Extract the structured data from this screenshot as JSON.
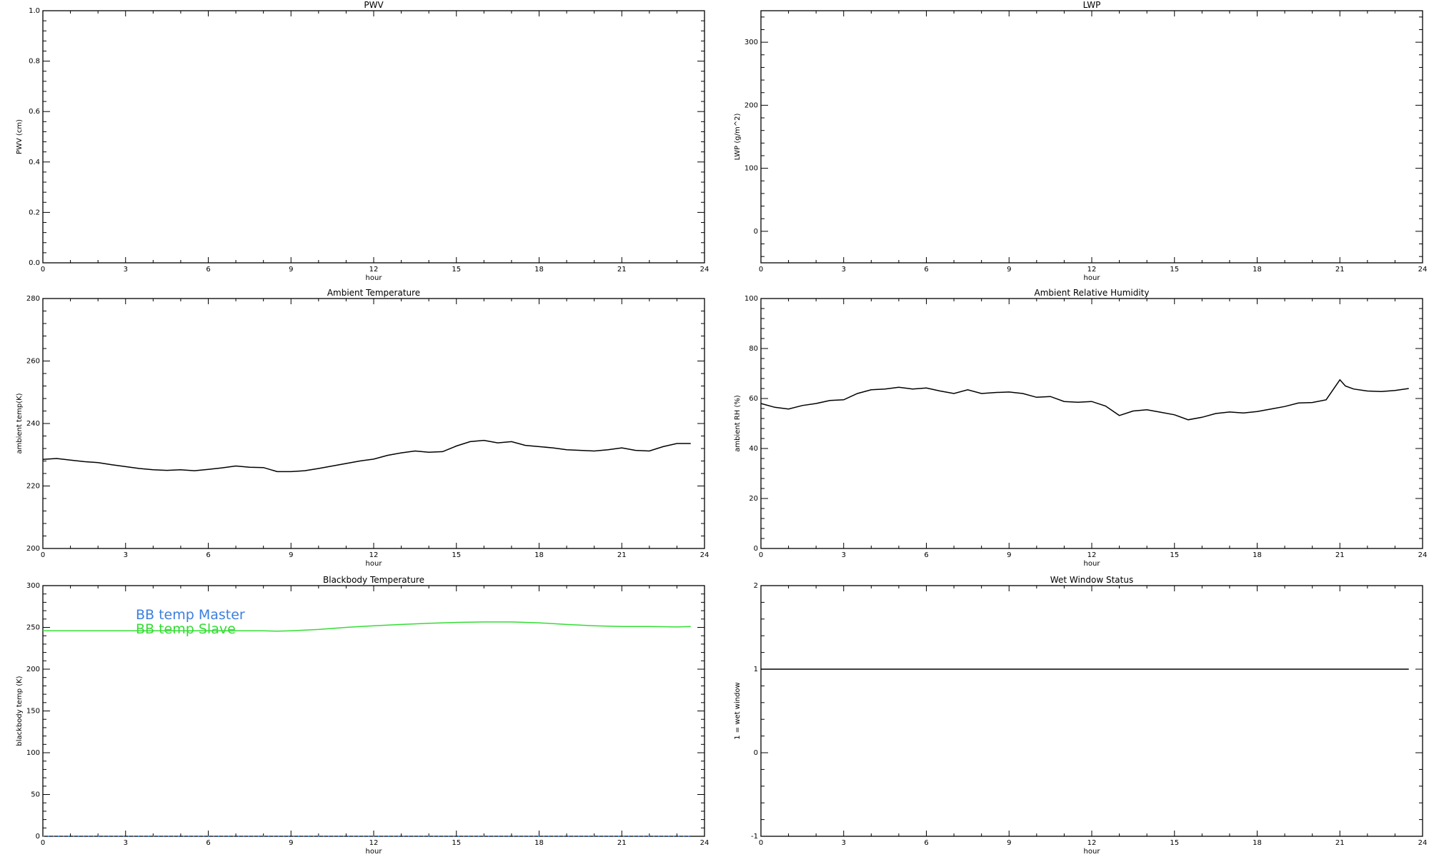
{
  "chart_data": [
    {
      "type": "line",
      "title": "PWV",
      "xlabel": "hour",
      "ylabel": "PWV (cm)",
      "xlim": [
        0,
        24
      ],
      "ylim": [
        0,
        1
      ],
      "xticks": [
        0,
        3,
        6,
        9,
        12,
        15,
        18,
        21,
        24
      ],
      "yticks": [
        0.0,
        0.2,
        0.4,
        0.6,
        0.8,
        1.0
      ],
      "ytick_labels": [
        "0.0",
        "0.2",
        "0.4",
        "0.6",
        "0.8",
        "1.0"
      ],
      "series": []
    },
    {
      "type": "line",
      "title": "LWP",
      "xlabel": "hour",
      "ylabel": "LWP (g/m^2)",
      "xlim": [
        0,
        24
      ],
      "ylim": [
        -50,
        350
      ],
      "xticks": [
        0,
        3,
        6,
        9,
        12,
        15,
        18,
        21,
        24
      ],
      "yticks": [
        0,
        100,
        200,
        300
      ],
      "ytick_labels": [
        "0",
        "100",
        "200",
        "300"
      ],
      "series": []
    },
    {
      "type": "line",
      "title": "Ambient Temperature",
      "xlabel": "hour",
      "ylabel": "ambient temp(K)",
      "xlim": [
        0,
        24
      ],
      "ylim": [
        200,
        280
      ],
      "xticks": [
        0,
        3,
        6,
        9,
        12,
        15,
        18,
        21,
        24
      ],
      "yticks": [
        200,
        220,
        240,
        260,
        280
      ],
      "ytick_labels": [
        "200",
        "220",
        "240",
        "260",
        "280"
      ],
      "series": [
        {
          "color": "#000000",
          "x": [
            0,
            0.5,
            1,
            1.5,
            2,
            2.5,
            3,
            3.5,
            4,
            4.5,
            5,
            5.5,
            6,
            6.5,
            7,
            7.5,
            8,
            8.5,
            9,
            9.5,
            10,
            10.5,
            11,
            11.5,
            12,
            12.5,
            13,
            13.5,
            14,
            14.5,
            15,
            15.5,
            16,
            16.5,
            17,
            17.5,
            18,
            18.5,
            19,
            19.5,
            20,
            20.5,
            21,
            21.5,
            22,
            22.5,
            23,
            23.5
          ],
          "y": [
            228.5,
            228.8,
            228.3,
            227.8,
            227.5,
            226.8,
            226.2,
            225.6,
            225.2,
            225.0,
            225.2,
            224.9,
            225.3,
            225.8,
            226.4,
            226.0,
            225.9,
            224.6,
            224.6,
            224.9,
            225.6,
            226.4,
            227.2,
            228.0,
            228.6,
            229.8,
            230.6,
            231.2,
            230.8,
            231.0,
            232.8,
            234.2,
            234.6,
            233.8,
            234.2,
            233.0,
            232.6,
            232.2,
            231.6,
            231.4,
            231.2,
            231.6,
            232.2,
            231.4,
            231.2,
            232.6,
            233.6,
            233.6
          ]
        }
      ]
    },
    {
      "type": "line",
      "title": "Ambient Relative Humidity",
      "xlabel": "hour",
      "ylabel": "ambient RH (%)",
      "xlim": [
        0,
        24
      ],
      "ylim": [
        0,
        100
      ],
      "xticks": [
        0,
        3,
        6,
        9,
        12,
        15,
        18,
        21,
        24
      ],
      "yticks": [
        0,
        20,
        40,
        60,
        80,
        100
      ],
      "ytick_labels": [
        "0",
        "20",
        "40",
        "60",
        "80",
        "100"
      ],
      "series": [
        {
          "color": "#000000",
          "x": [
            0,
            0.5,
            1,
            1.5,
            2,
            2.5,
            3,
            3.5,
            4,
            4.5,
            5,
            5.5,
            6,
            6.5,
            7,
            7.5,
            8,
            8.5,
            9,
            9.5,
            10,
            10.5,
            11,
            11.5,
            12,
            12.5,
            13,
            13.5,
            14,
            14.5,
            15,
            15.5,
            16,
            16.5,
            17,
            17.5,
            18,
            18.5,
            19,
            19.5,
            20,
            20.5,
            21,
            21.2,
            21.5,
            22,
            22.5,
            23,
            23.5
          ],
          "y": [
            58,
            56.5,
            55.8,
            57.2,
            58.0,
            59.2,
            59.5,
            62.0,
            63.5,
            63.8,
            64.5,
            63.8,
            64.2,
            63.0,
            62.0,
            63.5,
            62.0,
            62.4,
            62.6,
            62.0,
            60.5,
            60.8,
            58.8,
            58.5,
            58.8,
            57.0,
            53.2,
            55.0,
            55.5,
            54.5,
            53.5,
            51.5,
            52.5,
            54.0,
            54.6,
            54.2,
            54.8,
            55.8,
            56.8,
            58.2,
            58.4,
            59.5,
            67.5,
            65.0,
            63.8,
            63.0,
            62.8,
            63.2,
            64.0
          ]
        }
      ]
    },
    {
      "type": "line",
      "title": "Blackbody Temperature",
      "xlabel": "hour",
      "ylabel": "blackbody temp (K)",
      "xlim": [
        0,
        24
      ],
      "ylim": [
        0,
        300
      ],
      "xticks": [
        0,
        3,
        6,
        9,
        12,
        15,
        18,
        21,
        24
      ],
      "yticks": [
        0,
        50,
        100,
        150,
        200,
        250,
        300
      ],
      "ytick_labels": [
        "0",
        "50",
        "100",
        "150",
        "200",
        "250",
        "300"
      ],
      "legend": "top-left",
      "series": [
        {
          "name": "BB temp Master",
          "color": "#3b7fe0",
          "style": "dotted",
          "x": [
            0,
            3,
            6,
            9,
            12,
            15,
            18,
            21,
            23.5
          ],
          "y": [
            0,
            0,
            0,
            0,
            0,
            0,
            0,
            0,
            0
          ]
        },
        {
          "name": "BB temp Slave",
          "color": "#33dd33",
          "x": [
            0,
            1,
            2,
            3,
            4,
            5,
            6,
            7,
            8,
            8.5,
            9,
            10,
            11,
            12,
            13,
            14,
            15,
            16,
            17,
            18,
            19,
            20,
            21,
            22,
            23,
            23.5
          ],
          "y": [
            246,
            246,
            246,
            246,
            246,
            246,
            246,
            246,
            246,
            245.5,
            246,
            247.5,
            250,
            252,
            253.5,
            255,
            256,
            256.5,
            256.5,
            255.5,
            253.5,
            252,
            251,
            251,
            250.5,
            251
          ]
        }
      ]
    },
    {
      "type": "line",
      "title": "Wet Window Status",
      "xlabel": "hour",
      "ylabel": "1 = wet window",
      "xlim": [
        0,
        24
      ],
      "ylim": [
        -1,
        2
      ],
      "xticks": [
        0,
        3,
        6,
        9,
        12,
        15,
        18,
        21,
        24
      ],
      "yticks": [
        -1,
        0,
        1,
        2
      ],
      "ytick_labels": [
        "-1",
        "0",
        "1",
        "2"
      ],
      "series": [
        {
          "color": "#000000",
          "x": [
            0,
            23.5
          ],
          "y": [
            1,
            1
          ]
        }
      ]
    }
  ]
}
